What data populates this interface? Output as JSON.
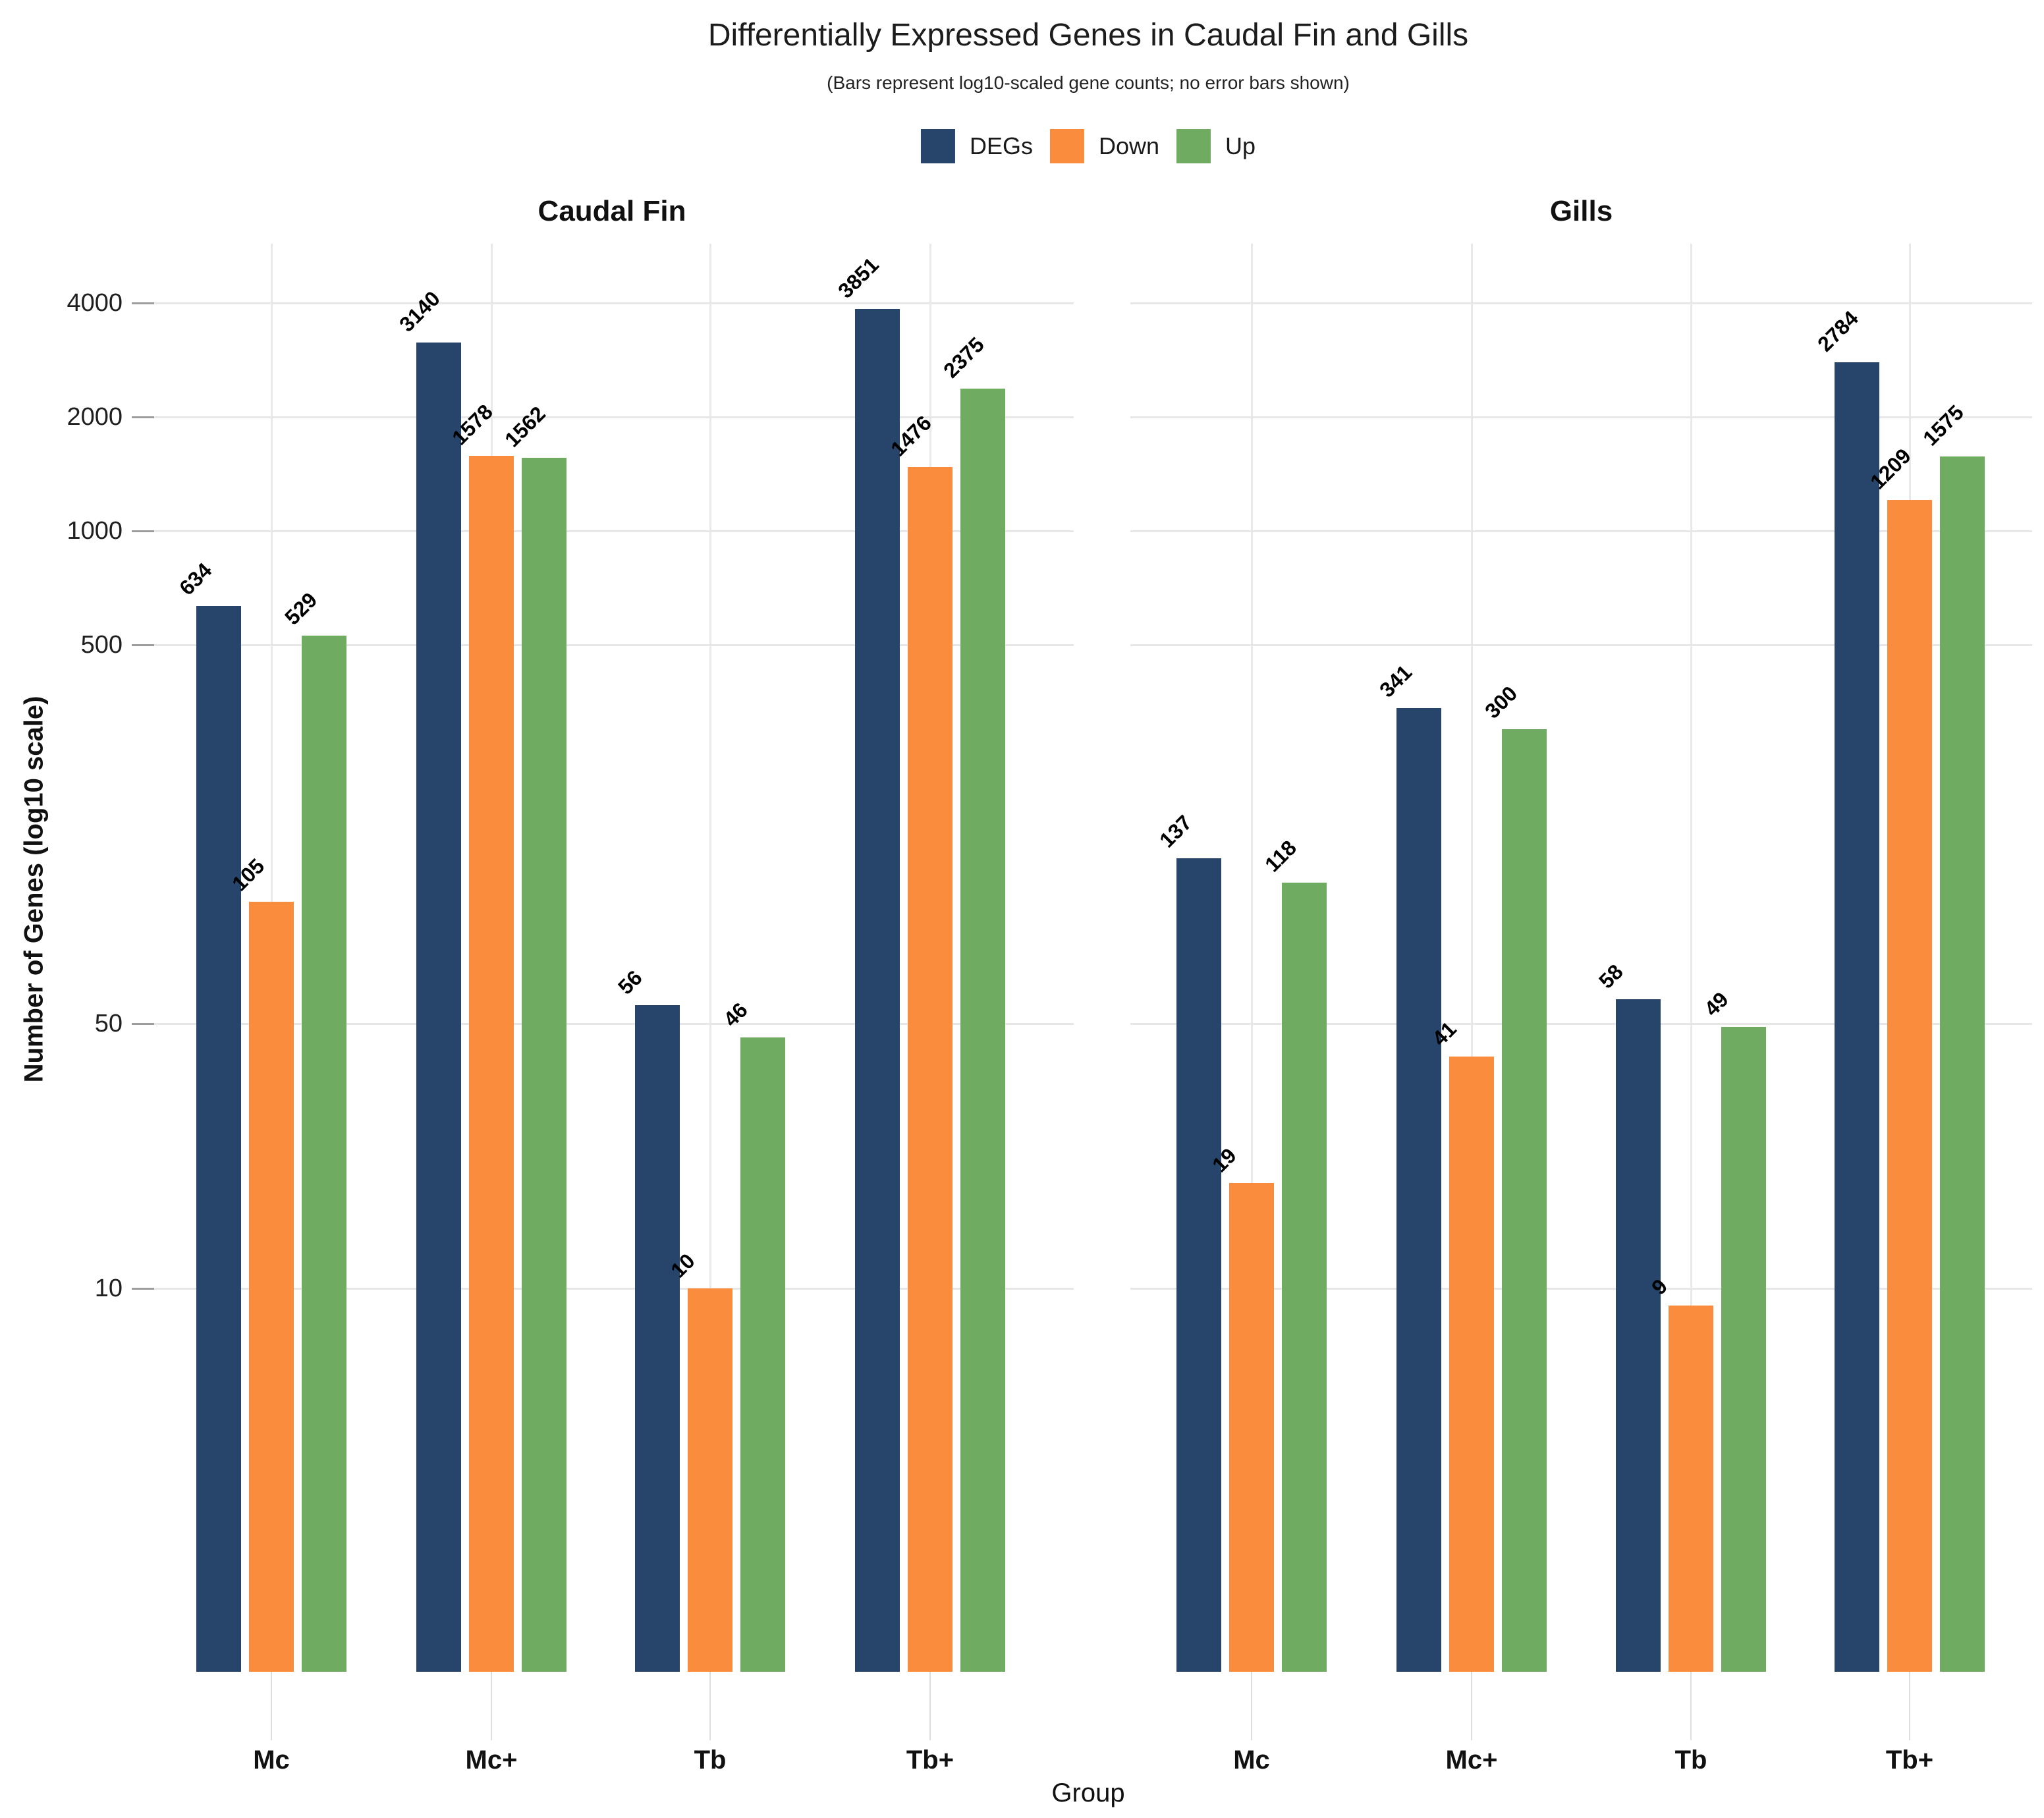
{
  "title": "Differentially Expressed Genes in Caudal Fin and Gills",
  "subtitle": "(Bars represent log10-scaled gene counts; no error bars shown)",
  "legend": {
    "items": [
      {
        "label": "DEGs",
        "color": "#27456b"
      },
      {
        "label": "Down",
        "color": "#f98c3d"
      },
      {
        "label": "Up",
        "color": "#6fab60"
      }
    ]
  },
  "axes": {
    "y_title": "Number of Genes (log10 scale)",
    "x_title": "Group",
    "y_tick_labels": [
      "4000",
      "2000",
      "1000",
      "500",
      "50",
      "10"
    ]
  },
  "chart_data": {
    "type": "bar",
    "scale": "log10",
    "title": "Differentially Expressed Genes in Caudal Fin and Gills",
    "subtitle": "(Bars represent log10-scaled gene counts; no error bars shown)",
    "xlabel": "Group",
    "ylabel": "Number of Genes (log10 scale)",
    "y_tick_values": [
      4000,
      2000,
      1000,
      500,
      50,
      10
    ],
    "ylim_log_top": 4000,
    "grid": true,
    "legend_position": "top-center",
    "bar_value_labels": true,
    "categories": [
      "Mc",
      "Mc+",
      "Tb",
      "Tb+"
    ],
    "facets": [
      {
        "title": "Caudal Fin",
        "series": [
          {
            "name": "DEGs",
            "color": "#27456b",
            "values": [
              634,
              3140,
              56,
              3851
            ]
          },
          {
            "name": "Down",
            "color": "#f98c3d",
            "values": [
              105,
              1578,
              10,
              1476
            ]
          },
          {
            "name": "Up",
            "color": "#6fab60",
            "values": [
              529,
              1562,
              46,
              2375
            ]
          }
        ]
      },
      {
        "title": "Gills",
        "series": [
          {
            "name": "DEGs",
            "color": "#27456b",
            "values": [
              137,
              341,
              58,
              2784
            ]
          },
          {
            "name": "Down",
            "color": "#f98c3d",
            "values": [
              19,
              41,
              9,
              1209
            ]
          },
          {
            "name": "Up",
            "color": "#6fab60",
            "values": [
              118,
              300,
              49,
              1575
            ]
          }
        ]
      }
    ]
  }
}
